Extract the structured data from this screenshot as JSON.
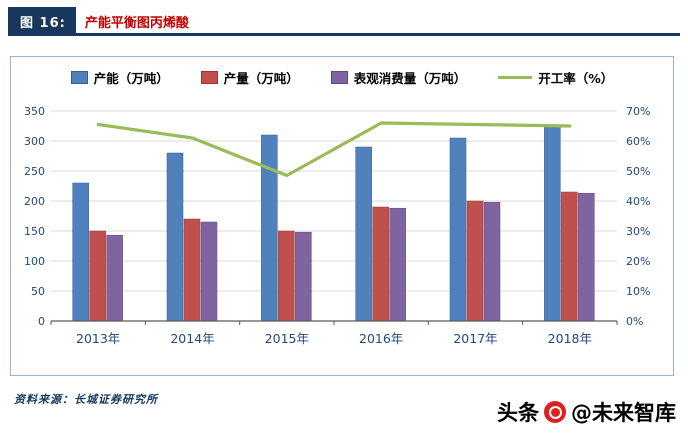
{
  "header": {
    "figure_label": "图 16:",
    "title": "产能平衡图丙烯酸"
  },
  "footer": {
    "source": "资料来源：长城证券研究所"
  },
  "watermark": {
    "prefix": "头条",
    "handle": "@未来智库",
    "logo_color": "#E02020"
  },
  "chart_data": {
    "type": "bar",
    "title": "产能平衡图丙烯酸",
    "categories": [
      "2013年",
      "2014年",
      "2015年",
      "2016年",
      "2017年",
      "2018年"
    ],
    "series": [
      {
        "name": "产能（万吨）",
        "color": "#4F81BD",
        "border": "#385D8A",
        "values": [
          230,
          280,
          310,
          290,
          305,
          325
        ]
      },
      {
        "name": "产量（万吨）",
        "color": "#C0504D",
        "border": "#943735",
        "values": [
          150,
          170,
          150,
          190,
          200,
          215
        ]
      },
      {
        "name": "表观消费量（万吨）",
        "color": "#8064A2",
        "border": "#5F497A",
        "values": [
          143,
          165,
          148,
          188,
          198,
          213
        ]
      }
    ],
    "line_series": {
      "name": "开工率（%）",
      "color": "#9BBB59",
      "values": [
        65.5,
        61,
        48.5,
        66,
        65.5,
        65
      ]
    },
    "left_axis": {
      "min": 0,
      "max": 350,
      "step": 50,
      "ticks": [
        "0",
        "50",
        "100",
        "150",
        "200",
        "250",
        "300",
        "350"
      ]
    },
    "right_axis": {
      "min": 0,
      "max": 70,
      "step": 10,
      "suffix": "%",
      "ticks": [
        "0%",
        "10%",
        "20%",
        "30%",
        "40%",
        "50%",
        "60%",
        "70%"
      ]
    },
    "grid": true,
    "legend_position": "top"
  }
}
